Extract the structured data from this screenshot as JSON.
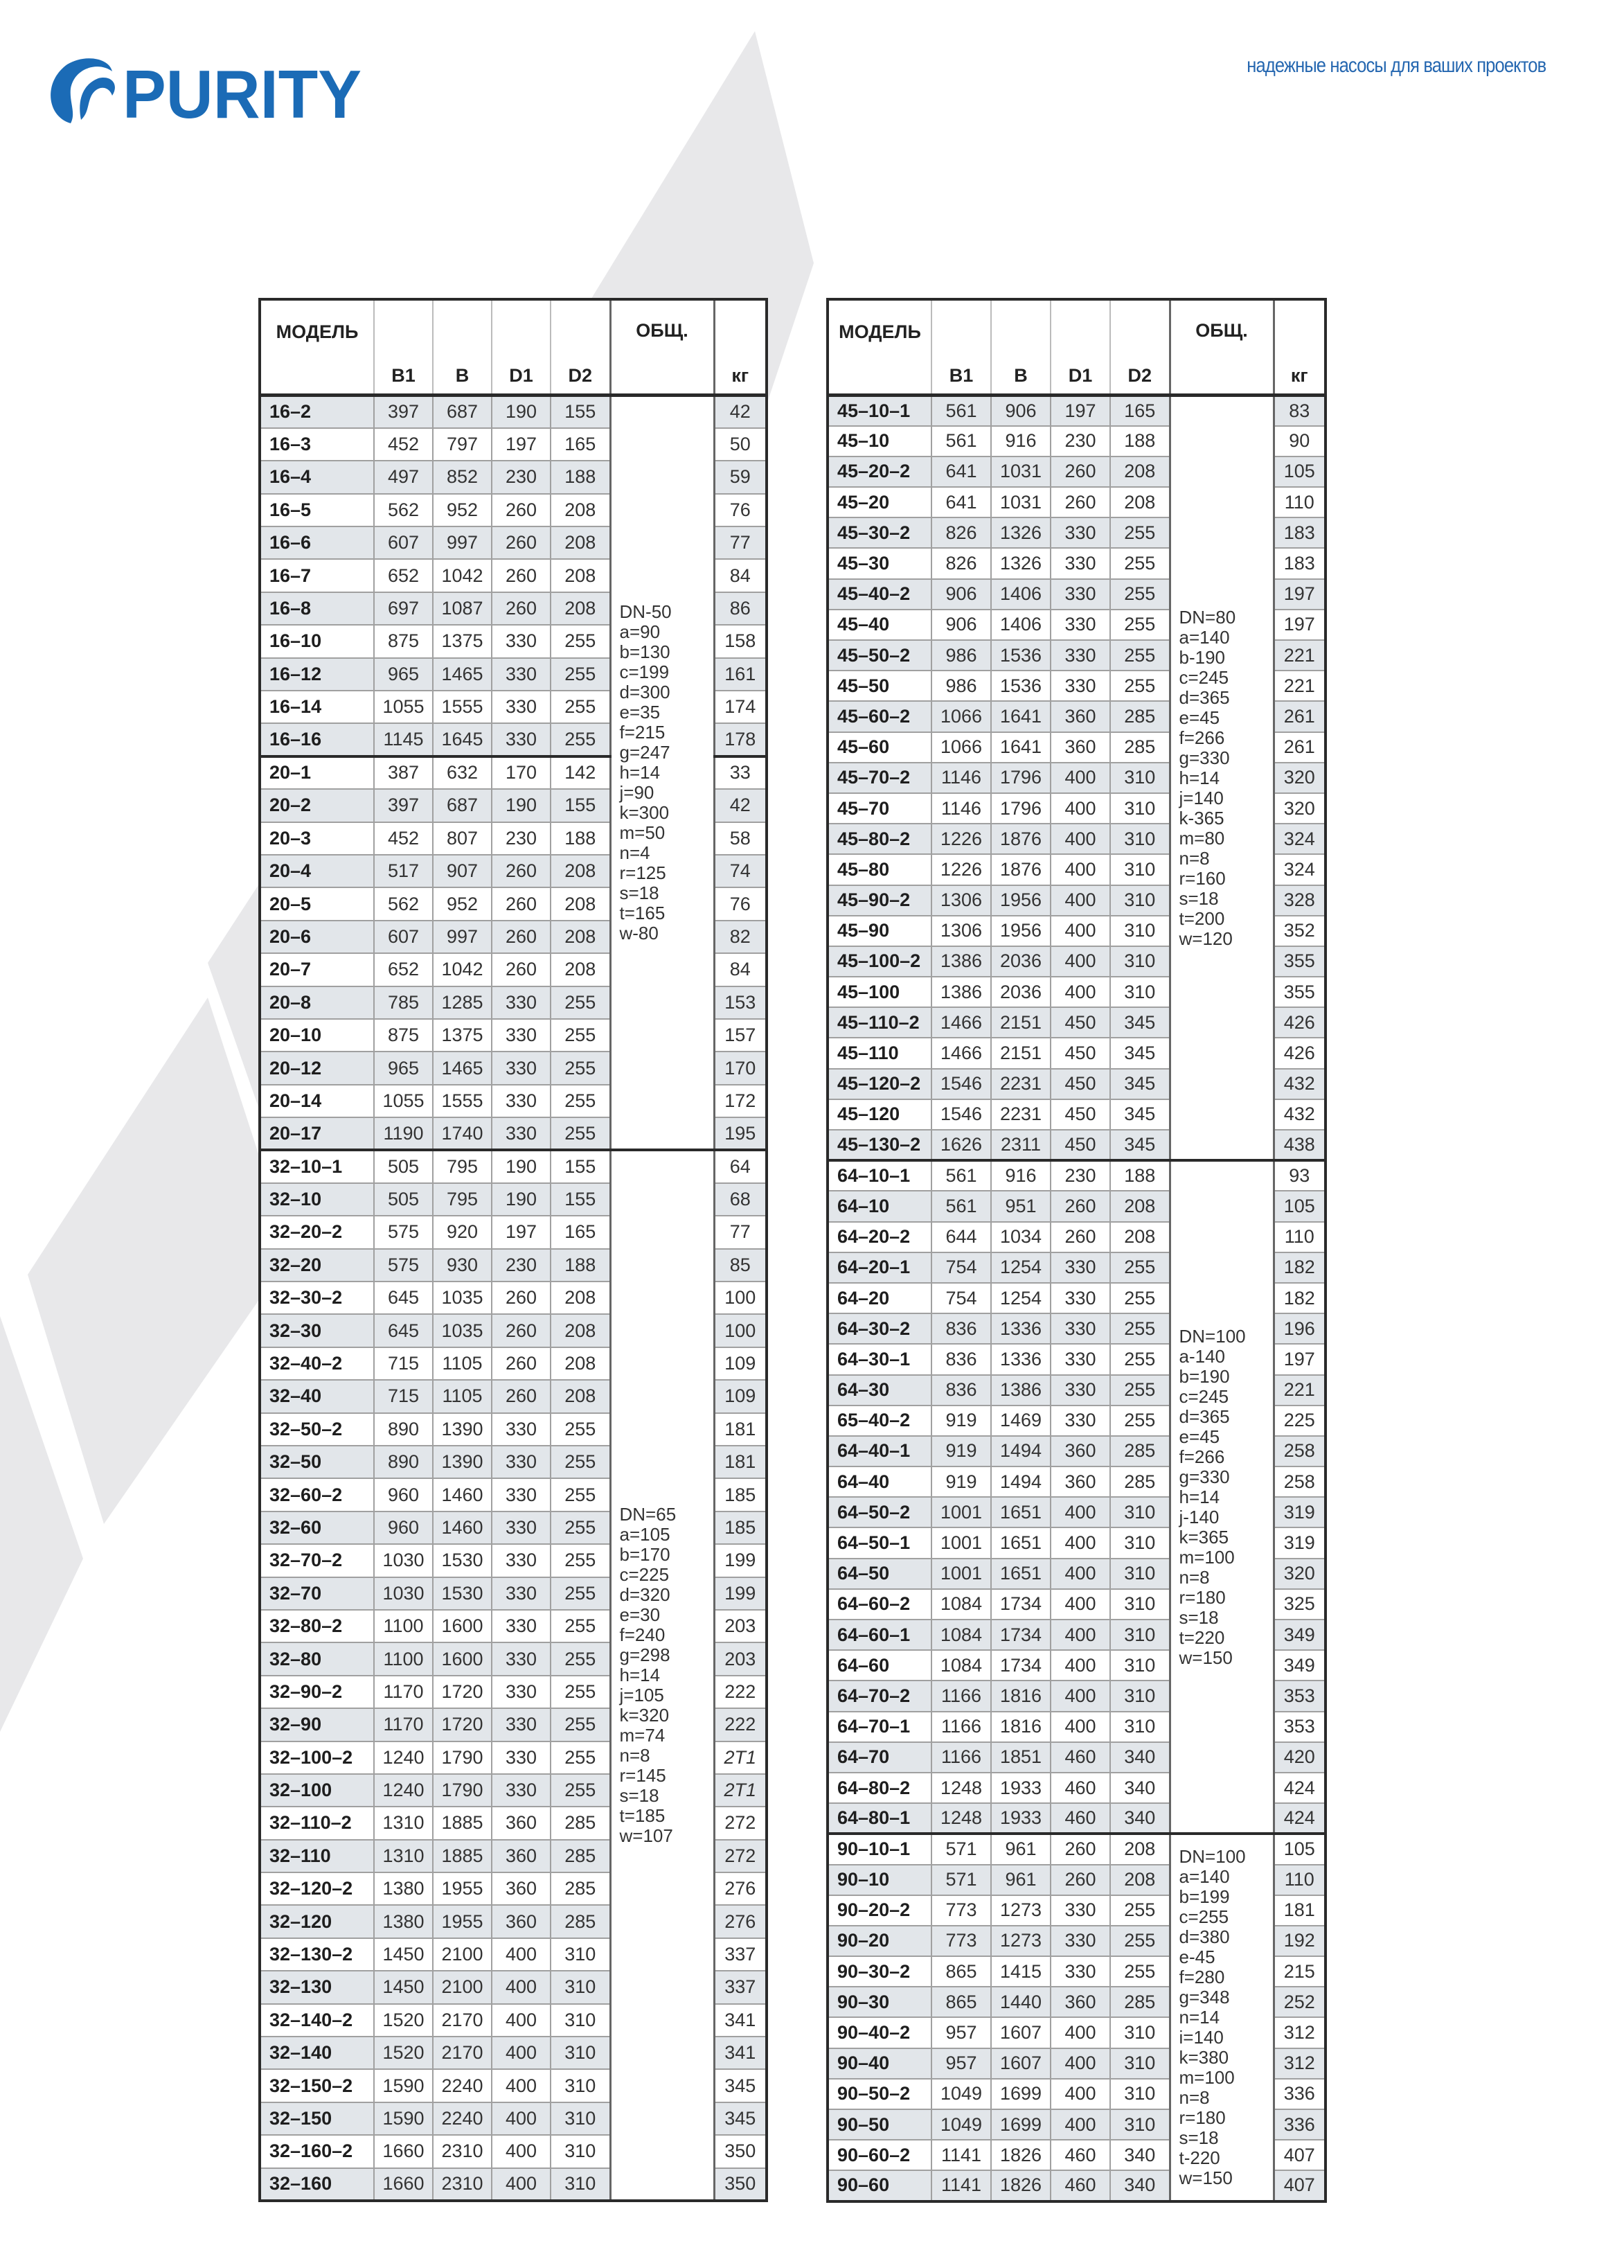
{
  "brand": {
    "logo_text": "PURITY",
    "color": "#1b6bb6"
  },
  "tagline": "надежные насосы для ваших проектов",
  "watermark_text": "PURITY",
  "headers": {
    "model": "МОДЕЛЬ",
    "b1": "B1",
    "b": "B",
    "d1": "D1",
    "d2": "D2",
    "obsh": "ОБЩ.",
    "kg": "кг"
  },
  "colors": {
    "stripe": "#e2e6ea",
    "border": "#2a2a2a",
    "tagline": "#2567b0"
  },
  "left_table": {
    "groups": [
      {
        "common": "DN-50\na=90\nb=130\nc=199\nd=300\ne=35\nf=215\ng=247\nh=14\nj=90\nk=300\nm=50\nn=4\nr=125\ns=18\nt=165\nw-80",
        "subgroups": [
          [
            [
              "16–2",
              "397",
              "687",
              "190",
              "155",
              "42"
            ],
            [
              "16–3",
              "452",
              "797",
              "197",
              "165",
              "50"
            ],
            [
              "16–4",
              "497",
              "852",
              "230",
              "188",
              "59"
            ],
            [
              "16–5",
              "562",
              "952",
              "260",
              "208",
              "76"
            ],
            [
              "16–6",
              "607",
              "997",
              "260",
              "208",
              "77"
            ],
            [
              "16–7",
              "652",
              "1042",
              "260",
              "208",
              "84"
            ],
            [
              "16–8",
              "697",
              "1087",
              "260",
              "208",
              "86"
            ],
            [
              "16–10",
              "875",
              "1375",
              "330",
              "255",
              "158"
            ],
            [
              "16–12",
              "965",
              "1465",
              "330",
              "255",
              "161"
            ],
            [
              "16–14",
              "1055",
              "1555",
              "330",
              "255",
              "174"
            ],
            [
              "16–16",
              "1145",
              "1645",
              "330",
              "255",
              "178"
            ]
          ],
          [
            [
              "20–1",
              "387",
              "632",
              "170",
              "142",
              "33"
            ],
            [
              "20–2",
              "397",
              "687",
              "190",
              "155",
              "42"
            ],
            [
              "20–3",
              "452",
              "807",
              "230",
              "188",
              "58"
            ],
            [
              "20–4",
              "517",
              "907",
              "260",
              "208",
              "74"
            ],
            [
              "20–5",
              "562",
              "952",
              "260",
              "208",
              "76"
            ],
            [
              "20–6",
              "607",
              "997",
              "260",
              "208",
              "82"
            ],
            [
              "20–7",
              "652",
              "1042",
              "260",
              "208",
              "84"
            ],
            [
              "20–8",
              "785",
              "1285",
              "330",
              "255",
              "153"
            ],
            [
              "20–10",
              "875",
              "1375",
              "330",
              "255",
              "157"
            ],
            [
              "20–12",
              "965",
              "1465",
              "330",
              "255",
              "170"
            ],
            [
              "20–14",
              "1055",
              "1555",
              "330",
              "255",
              "172"
            ],
            [
              "20–17",
              "1190",
              "1740",
              "330",
              "255",
              "195"
            ]
          ]
        ]
      },
      {
        "common": "DN=65\na=105\nb=170\nc=225\nd=320\ne=30\nf=240\ng=298\nh=14\nj=105\nk=320\nm=74\nn=8\nr=145\ns=18\nt=185\nw=107",
        "subgroups": [
          [
            [
              "32–10–1",
              "505",
              "795",
              "190",
              "155",
              "64"
            ],
            [
              "32–10",
              "505",
              "795",
              "190",
              "155",
              "68"
            ],
            [
              "32–20–2",
              "575",
              "920",
              "197",
              "165",
              "77"
            ],
            [
              "32–20",
              "575",
              "930",
              "230",
              "188",
              "85"
            ],
            [
              "32–30–2",
              "645",
              "1035",
              "260",
              "208",
              "100"
            ],
            [
              "32–30",
              "645",
              "1035",
              "260",
              "208",
              "100"
            ],
            [
              "32–40–2",
              "715",
              "1105",
              "260",
              "208",
              "109"
            ],
            [
              "32–40",
              "715",
              "1105",
              "260",
              "208",
              "109"
            ],
            [
              "32–50–2",
              "890",
              "1390",
              "330",
              "255",
              "181"
            ],
            [
              "32–50",
              "890",
              "1390",
              "330",
              "255",
              "181"
            ],
            [
              "32–60–2",
              "960",
              "1460",
              "330",
              "255",
              "185"
            ],
            [
              "32–60",
              "960",
              "1460",
              "330",
              "255",
              "185"
            ],
            [
              "32–70–2",
              "1030",
              "1530",
              "330",
              "255",
              "199"
            ],
            [
              "32–70",
              "1030",
              "1530",
              "330",
              "255",
              "199"
            ],
            [
              "32–80–2",
              "1100",
              "1600",
              "330",
              "255",
              "203"
            ],
            [
              "32–80",
              "1100",
              "1600",
              "330",
              "255",
              "203"
            ],
            [
              "32–90–2",
              "1170",
              "1720",
              "330",
              "255",
              "222"
            ],
            [
              "32–90",
              "1170",
              "1720",
              "330",
              "255",
              "222"
            ],
            [
              "32–100–2",
              "1240",
              "1790",
              "330",
              "255",
              "2T1"
            ],
            [
              "32–100",
              "1240",
              "1790",
              "330",
              "255",
              "2T1"
            ],
            [
              "32–110–2",
              "1310",
              "1885",
              "360",
              "285",
              "272"
            ],
            [
              "32–110",
              "1310",
              "1885",
              "360",
              "285",
              "272"
            ],
            [
              "32–120–2",
              "1380",
              "1955",
              "360",
              "285",
              "276"
            ],
            [
              "32–120",
              "1380",
              "1955",
              "360",
              "285",
              "276"
            ],
            [
              "32–130–2",
              "1450",
              "2100",
              "400",
              "310",
              "337"
            ],
            [
              "32–130",
              "1450",
              "2100",
              "400",
              "310",
              "337"
            ],
            [
              "32–140–2",
              "1520",
              "2170",
              "400",
              "310",
              "341"
            ],
            [
              "32–140",
              "1520",
              "2170",
              "400",
              "310",
              "341"
            ],
            [
              "32–150–2",
              "1590",
              "2240",
              "400",
              "310",
              "345"
            ],
            [
              "32–150",
              "1590",
              "2240",
              "400",
              "310",
              "345"
            ],
            [
              "32–160–2",
              "1660",
              "2310",
              "400",
              "310",
              "350"
            ],
            [
              "32–160",
              "1660",
              "2310",
              "400",
              "310",
              "350"
            ]
          ]
        ]
      }
    ]
  },
  "right_table": {
    "groups": [
      {
        "common": "DN=80\na=140\nb-190\nc=245\nd=365\ne=45\nf=266\ng=330\nh=14\nj=140\nk-365\nm=80\nn=8\nr=160\ns=18\nt=200\nw=120",
        "subgroups": [
          [
            [
              "45–10–1",
              "561",
              "906",
              "197",
              "165",
              "83"
            ],
            [
              "45–10",
              "561",
              "916",
              "230",
              "188",
              "90"
            ],
            [
              "45–20–2",
              "641",
              "1031",
              "260",
              "208",
              "105"
            ],
            [
              "45–20",
              "641",
              "1031",
              "260",
              "208",
              "110"
            ],
            [
              "45–30–2",
              "826",
              "1326",
              "330",
              "255",
              "183"
            ],
            [
              "45–30",
              "826",
              "1326",
              "330",
              "255",
              "183"
            ],
            [
              "45–40–2",
              "906",
              "1406",
              "330",
              "255",
              "197"
            ],
            [
              "45–40",
              "906",
              "1406",
              "330",
              "255",
              "197"
            ],
            [
              "45–50–2",
              "986",
              "1536",
              "330",
              "255",
              "221"
            ],
            [
              "45–50",
              "986",
              "1536",
              "330",
              "255",
              "221"
            ],
            [
              "45–60–2",
              "1066",
              "1641",
              "360",
              "285",
              "261"
            ],
            [
              "45–60",
              "1066",
              "1641",
              "360",
              "285",
              "261"
            ],
            [
              "45–70–2",
              "1146",
              "1796",
              "400",
              "310",
              "320"
            ],
            [
              "45–70",
              "1146",
              "1796",
              "400",
              "310",
              "320"
            ],
            [
              "45–80–2",
              "1226",
              "1876",
              "400",
              "310",
              "324"
            ],
            [
              "45–80",
              "1226",
              "1876",
              "400",
              "310",
              "324"
            ],
            [
              "45–90–2",
              "1306",
              "1956",
              "400",
              "310",
              "328"
            ],
            [
              "45–90",
              "1306",
              "1956",
              "400",
              "310",
              "352"
            ],
            [
              "45–100–2",
              "1386",
              "2036",
              "400",
              "310",
              "355"
            ],
            [
              "45–100",
              "1386",
              "2036",
              "400",
              "310",
              "355"
            ],
            [
              "45–110–2",
              "1466",
              "2151",
              "450",
              "345",
              "426"
            ],
            [
              "45–110",
              "1466",
              "2151",
              "450",
              "345",
              "426"
            ],
            [
              "45–120–2",
              "1546",
              "2231",
              "450",
              "345",
              "432"
            ],
            [
              "45–120",
              "1546",
              "2231",
              "450",
              "345",
              "432"
            ],
            [
              "45–130–2",
              "1626",
              "2311",
              "450",
              "345",
              "438"
            ]
          ]
        ]
      },
      {
        "common": "DN=100\na-140\nb=190\nc=245\nd=365\ne=45\nf=266\ng=330\nh=14\nj-140\nk=365\nm=100\nn=8\nr=180\ns=18\nt=220\nw=150",
        "subgroups": [
          [
            [
              "64–10–1",
              "561",
              "916",
              "230",
              "188",
              "93"
            ],
            [
              "64–10",
              "561",
              "951",
              "260",
              "208",
              "105"
            ],
            [
              "64–20–2",
              "644",
              "1034",
              "260",
              "208",
              "110"
            ],
            [
              "64–20–1",
              "754",
              "1254",
              "330",
              "255",
              "182"
            ],
            [
              "64–20",
              "754",
              "1254",
              "330",
              "255",
              "182"
            ],
            [
              "64–30–2",
              "836",
              "1336",
              "330",
              "255",
              "196"
            ],
            [
              "64–30–1",
              "836",
              "1336",
              "330",
              "255",
              "197"
            ],
            [
              "64–30",
              "836",
              "1386",
              "330",
              "255",
              "221"
            ],
            [
              "65–40–2",
              "919",
              "1469",
              "330",
              "255",
              "225"
            ],
            [
              "64–40–1",
              "919",
              "1494",
              "360",
              "285",
              "258"
            ],
            [
              "64–40",
              "919",
              "1494",
              "360",
              "285",
              "258"
            ],
            [
              "64–50–2",
              "1001",
              "1651",
              "400",
              "310",
              "319"
            ],
            [
              "64–50–1",
              "1001",
              "1651",
              "400",
              "310",
              "319"
            ],
            [
              "64–50",
              "1001",
              "1651",
              "400",
              "310",
              "320"
            ],
            [
              "64–60–2",
              "1084",
              "1734",
              "400",
              "310",
              "325"
            ],
            [
              "64–60–1",
              "1084",
              "1734",
              "400",
              "310",
              "349"
            ],
            [
              "64–60",
              "1084",
              "1734",
              "400",
              "310",
              "349"
            ],
            [
              "64–70–2",
              "1166",
              "1816",
              "400",
              "310",
              "353"
            ],
            [
              "64–70–1",
              "1166",
              "1816",
              "400",
              "310",
              "353"
            ],
            [
              "64–70",
              "1166",
              "1851",
              "460",
              "340",
              "420"
            ],
            [
              "64–80–2",
              "1248",
              "1933",
              "460",
              "340",
              "424"
            ],
            [
              "64–80–1",
              "1248",
              "1933",
              "460",
              "340",
              "424"
            ]
          ]
        ]
      },
      {
        "common": "DN=100\na=140\nb=199\nc=255\nd=380\ne-45\nf=280\ng=348\nn=14\ni=140\nk=380\nm=100\nn=8\nr=180\ns=18\nt-220\nw=150",
        "subgroups": [
          [
            [
              "90–10–1",
              "571",
              "961",
              "260",
              "208",
              "105"
            ],
            [
              "90–10",
              "571",
              "961",
              "260",
              "208",
              "110"
            ],
            [
              "90–20–2",
              "773",
              "1273",
              "330",
              "255",
              "181"
            ],
            [
              "90–20",
              "773",
              "1273",
              "330",
              "255",
              "192"
            ],
            [
              "90–30–2",
              "865",
              "1415",
              "330",
              "255",
              "215"
            ],
            [
              "90–30",
              "865",
              "1440",
              "360",
              "285",
              "252"
            ],
            [
              "90–40–2",
              "957",
              "1607",
              "400",
              "310",
              "312"
            ],
            [
              "90–40",
              "957",
              "1607",
              "400",
              "310",
              "312"
            ],
            [
              "90–50–2",
              "1049",
              "1699",
              "400",
              "310",
              "336"
            ],
            [
              "90–50",
              "1049",
              "1699",
              "400",
              "310",
              "336"
            ],
            [
              "90–60–2",
              "1141",
              "1826",
              "460",
              "340",
              "407"
            ],
            [
              "90–60",
              "1141",
              "1826",
              "460",
              "340",
              "407"
            ]
          ]
        ]
      }
    ]
  }
}
